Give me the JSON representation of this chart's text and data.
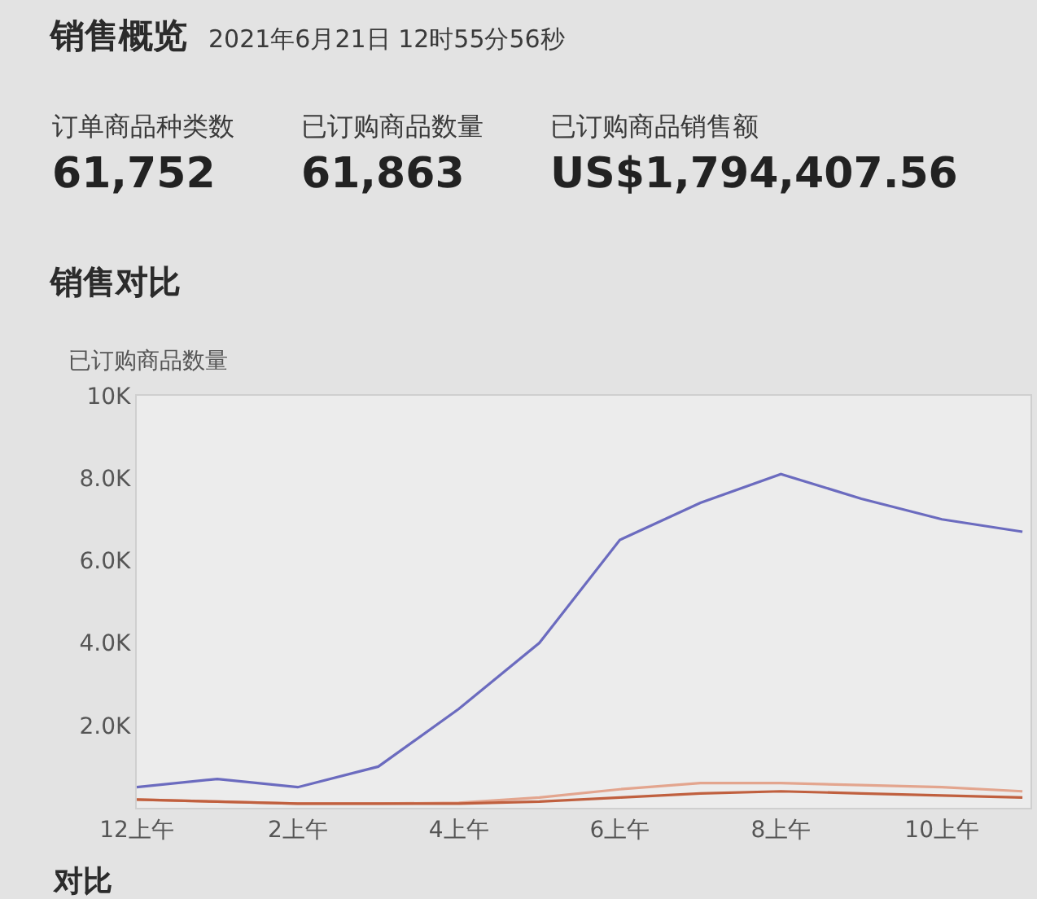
{
  "chart_data": [
    {
      "type": "other",
      "title": "销售概览",
      "subtitle": "2021年6月21日 12时55分56秒",
      "annotations": [
        "订单商品种类数",
        "61,752",
        "已订购商品数量",
        "61,863",
        "已订购商品销售额",
        "US$1,794,407.56"
      ]
    },
    {
      "type": "line",
      "title": "销售对比",
      "ylabel": "已订购商品数量",
      "x": [
        "2021-06-21T00:00",
        "2021-06-21T01:00",
        "2021-06-21T02:00",
        "2021-06-21T03:00",
        "2021-06-21T04:00",
        "2021-06-21T05:00",
        "2021-06-21T06:00",
        "2021-06-21T07:00",
        "2021-06-21T08:00",
        "2021-06-21T09:00",
        "2021-06-21T10:00",
        "2021-06-21T11:00"
      ],
      "series": [
        {
          "color": "#e3a58e",
          "values": [
            200,
            150,
            100,
            100,
            120,
            250,
            450,
            600,
            600,
            550,
            500,
            400
          ]
        },
        {
          "color": "#c0603f",
          "values": [
            200,
            150,
            100,
            100,
            100,
            150,
            250,
            350,
            400,
            350,
            300,
            250
          ]
        },
        {
          "color": "#6b6bbf",
          "values": [
            500,
            700,
            500,
            1000,
            2400,
            4000,
            6500,
            7400,
            8100,
            7500,
            7000,
            6700
          ]
        }
      ],
      "xlim": [
        "2021-06-21T00:00",
        "2021-06-21T11:06"
      ],
      "xticks": [
        {
          "value": "2021-06-21T00:00",
          "label": "12上午"
        },
        {
          "value": "2021-06-21T02:00",
          "label": "2上午"
        },
        {
          "value": "2021-06-21T04:00",
          "label": "4上午"
        },
        {
          "value": "2021-06-21T06:00",
          "label": "6上午"
        },
        {
          "value": "2021-06-21T08:00",
          "label": "8上午"
        },
        {
          "value": "2021-06-21T10:00",
          "label": "10上午"
        }
      ],
      "ylim": [
        0,
        10000
      ],
      "yticks": [
        {
          "value": 2000,
          "label": "2.0K"
        },
        {
          "value": 4000,
          "label": "4.0K"
        },
        {
          "value": 6000,
          "label": "6.0K"
        },
        {
          "value": 8000,
          "label": "8.0K"
        },
        {
          "value": 10000,
          "label": "10K"
        }
      ],
      "annotations": [
        "对比"
      ]
    }
  ]
}
